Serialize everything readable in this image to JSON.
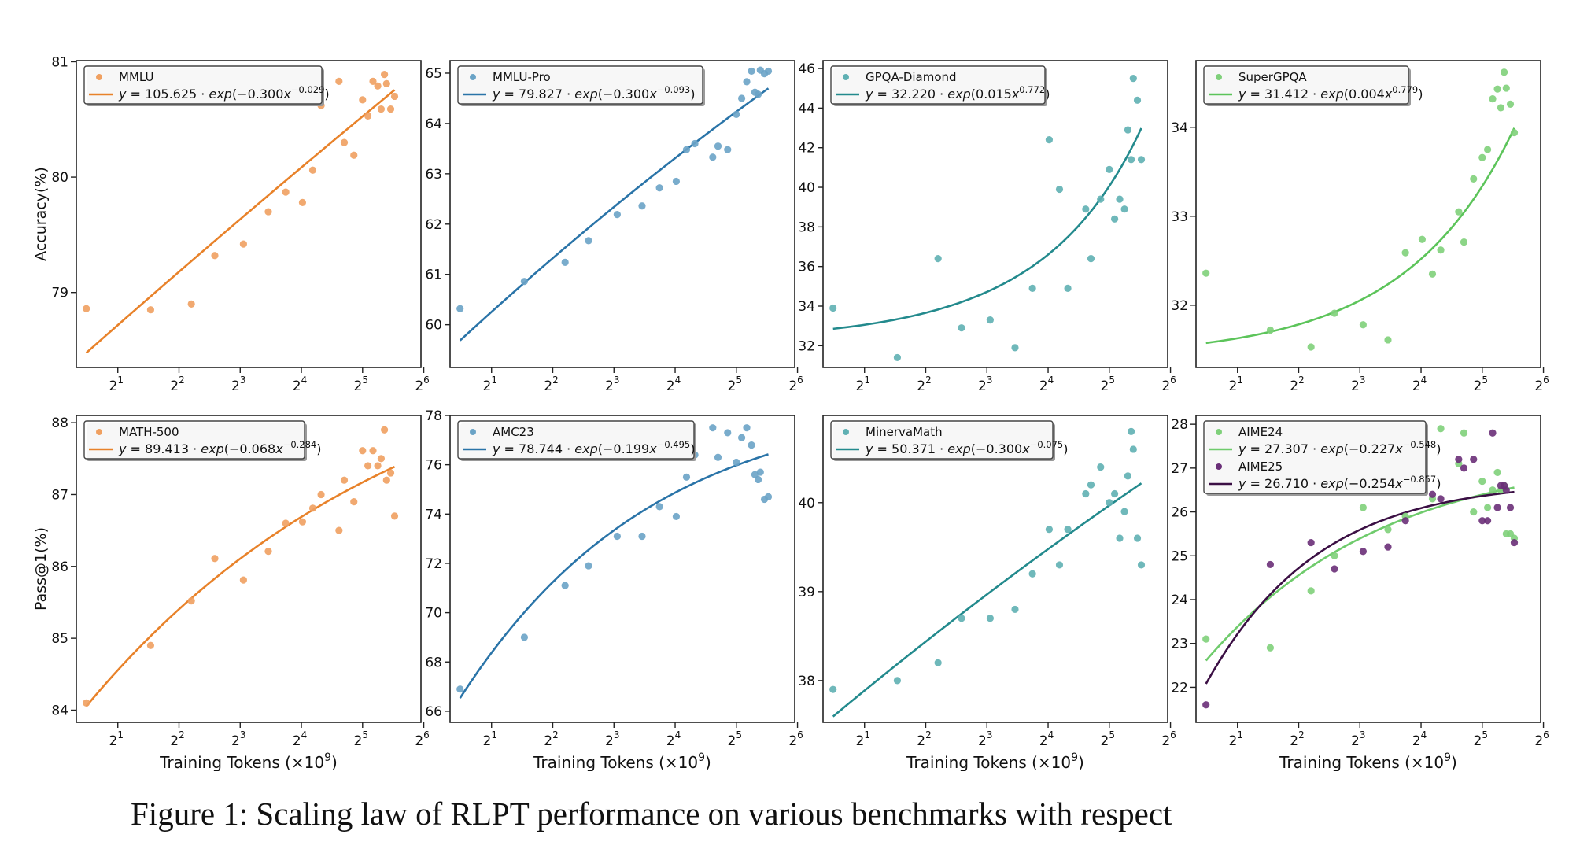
{
  "caption": "Figure 1: Scaling law of RLPT performance on various benchmarks with respect",
  "chart_data": [
    {
      "type": "scatter",
      "ylabel": "Accuracy(%)",
      "xlabel": "",
      "xscale": "log2",
      "xlim": [
        1.25,
        62
      ],
      "ylim": [
        78.35,
        81.01
      ],
      "xticks": [
        2,
        4,
        8,
        16,
        32,
        64
      ],
      "xtick_labels": [
        "2",
        "2",
        "2",
        "2",
        "2",
        "2"
      ],
      "xtick_exponents": [
        "1",
        "2",
        "3",
        "4",
        "5",
        "6"
      ],
      "yticks": [
        79,
        80,
        81
      ],
      "ytick_labels": [
        "79",
        "80",
        "81"
      ],
      "legend_position": "top-left",
      "series": [
        {
          "name": "MMLU",
          "color": "#f0a060",
          "x": [
            1.4,
            2.9,
            4.6,
            6.0,
            8.3,
            11.0,
            13.4,
            16.2,
            18.2,
            20.0,
            24.5,
            26.0,
            29.0,
            32.0,
            34.0,
            36.0,
            38.0,
            39.5,
            41.0,
            42.0,
            44.0,
            46.0
          ],
          "y": [
            78.86,
            78.85,
            78.9,
            79.32,
            79.42,
            79.7,
            79.87,
            79.78,
            80.06,
            80.62,
            80.83,
            80.3,
            80.19,
            80.67,
            80.53,
            80.83,
            80.79,
            80.59,
            80.89,
            80.81,
            80.59,
            80.7
          ]
        }
      ],
      "fit": {
        "label": "y = 105.625 · exp(−0.300x^−0.029)",
        "color": "#e8822a",
        "a": 105.625,
        "b": -0.3,
        "c": -0.029,
        "x_range": [
          1.4,
          46
        ]
      }
    },
    {
      "type": "scatter",
      "ylabel": "",
      "xlabel": "",
      "xscale": "log2",
      "xlim": [
        1.25,
        62
      ],
      "ylim": [
        59.15,
        65.25
      ],
      "xticks": [
        2,
        4,
        8,
        16,
        32,
        64
      ],
      "xtick_labels": [
        "2",
        "2",
        "2",
        "2",
        "2",
        "2"
      ],
      "xtick_exponents": [
        "1",
        "2",
        "3",
        "4",
        "5",
        "6"
      ],
      "yticks": [
        60,
        61,
        62,
        63,
        64,
        65
      ],
      "ytick_labels": [
        "60",
        "61",
        "62",
        "63",
        "64",
        "65"
      ],
      "legend_position": "top-left",
      "series": [
        {
          "name": "MMLU-Pro",
          "color": "#6aa3c6",
          "x": [
            1.4,
            2.9,
            4.6,
            6.0,
            8.3,
            11.0,
            13.4,
            16.2,
            18.2,
            20.0,
            24.5,
            26.0,
            29.0,
            32.0,
            34.0,
            36.0,
            38.0,
            39.5,
            41.0,
            42.0,
            44.0,
            46.0
          ],
          "y": [
            60.32,
            60.86,
            61.24,
            61.67,
            62.19,
            62.36,
            62.72,
            62.85,
            63.48,
            63.6,
            63.33,
            63.55,
            63.48,
            64.18,
            64.5,
            64.83,
            65.04,
            64.62,
            64.58,
            65.06,
            64.99,
            65.04
          ]
        }
      ],
      "fit": {
        "label": "y = 79.827 · exp(−0.300x^−0.093)",
        "color": "#2a74a8",
        "a": 79.827,
        "b": -0.3,
        "c": -0.093,
        "x_range": [
          1.4,
          46
        ]
      }
    },
    {
      "type": "scatter",
      "ylabel": "",
      "xlabel": "",
      "xscale": "log2",
      "xlim": [
        1.25,
        62
      ],
      "ylim": [
        30.9,
        46.4
      ],
      "xticks": [
        2,
        4,
        8,
        16,
        32,
        64
      ],
      "xtick_labels": [
        "2",
        "2",
        "2",
        "2",
        "2",
        "2"
      ],
      "xtick_exponents": [
        "1",
        "2",
        "3",
        "4",
        "5",
        "6"
      ],
      "yticks": [
        32,
        34,
        36,
        38,
        40,
        42,
        44,
        46
      ],
      "ytick_labels": [
        "32",
        "34",
        "36",
        "38",
        "40",
        "42",
        "44",
        "46"
      ],
      "legend_position": "top-left",
      "series": [
        {
          "name": "GPQA-Diamond",
          "color": "#5fb0b3",
          "x": [
            1.4,
            2.9,
            4.6,
            6.0,
            8.3,
            11.0,
            13.4,
            16.2,
            18.2,
            20.0,
            24.5,
            26.0,
            29.0,
            32.0,
            34.0,
            36.0,
            38.0,
            39.5,
            41.0,
            42.0,
            44.0,
            46.0
          ],
          "y": [
            33.9,
            31.4,
            36.4,
            32.9,
            33.3,
            31.9,
            34.9,
            42.4,
            39.9,
            34.9,
            38.9,
            36.4,
            39.4,
            40.9,
            38.4,
            39.4,
            38.9,
            42.9,
            41.4,
            45.5,
            44.4,
            41.4
          ]
        }
      ],
      "fit": {
        "label": "y = 32.220 · exp(0.015x^0.772)",
        "color": "#238a8d",
        "a": 32.22,
        "b": 0.015,
        "c": 0.772,
        "x_range": [
          1.4,
          46
        ]
      }
    },
    {
      "type": "scatter",
      "ylabel": "",
      "xlabel": "",
      "xscale": "log2",
      "xlim": [
        1.25,
        62
      ],
      "ylim": [
        31.3,
        34.75
      ],
      "xticks": [
        2,
        4,
        8,
        16,
        32,
        64
      ],
      "xtick_labels": [
        "2",
        "2",
        "2",
        "2",
        "2",
        "2"
      ],
      "xtick_exponents": [
        "1",
        "2",
        "3",
        "4",
        "5",
        "6"
      ],
      "yticks": [
        32,
        33,
        34
      ],
      "ytick_labels": [
        "32",
        "33",
        "34"
      ],
      "legend_position": "top-left",
      "series": [
        {
          "name": "SuperGPQA",
          "color": "#7fd07a",
          "x": [
            1.4,
            2.9,
            4.6,
            6.0,
            8.3,
            11.0,
            13.4,
            16.2,
            18.2,
            20.0,
            24.5,
            26.0,
            29.0,
            32.0,
            34.0,
            36.0,
            38.0,
            39.5,
            41.0,
            42.0,
            44.0,
            46.0
          ],
          "y": [
            32.36,
            31.72,
            31.53,
            31.91,
            31.78,
            31.61,
            32.59,
            32.74,
            32.35,
            32.62,
            33.05,
            32.71,
            33.42,
            33.66,
            33.75,
            34.32,
            34.43,
            34.22,
            34.62,
            34.44,
            34.26,
            33.94
          ]
        }
      ],
      "fit": {
        "label": "y = 31.412 · exp(0.004x^0.779)",
        "color": "#5cc45a",
        "a": 31.412,
        "b": 0.004,
        "c": 0.779,
        "x_range": [
          1.4,
          46
        ]
      }
    },
    {
      "type": "scatter",
      "ylabel": "Pass@1(%)",
      "xlabel": "Training Tokens (×10⁹)",
      "xscale": "log2",
      "xlim": [
        1.25,
        62
      ],
      "ylim": [
        83.83,
        88.1
      ],
      "xticks": [
        2,
        4,
        8,
        16,
        32,
        64
      ],
      "xtick_labels": [
        "2",
        "2",
        "2",
        "2",
        "2",
        "2"
      ],
      "xtick_exponents": [
        "1",
        "2",
        "3",
        "4",
        "5",
        "6"
      ],
      "yticks": [
        84,
        85,
        86,
        87,
        88
      ],
      "ytick_labels": [
        "84",
        "85",
        "86",
        "87",
        "88"
      ],
      "legend_position": "top-left",
      "series": [
        {
          "name": "MATH-500",
          "color": "#f0a060",
          "x": [
            1.4,
            2.9,
            4.6,
            6.0,
            8.3,
            11.0,
            13.4,
            16.2,
            18.2,
            20.0,
            24.5,
            26.0,
            29.0,
            32.0,
            34.0,
            36.0,
            38.0,
            39.5,
            41.0,
            42.0,
            44.0,
            46.0
          ],
          "y": [
            84.1,
            84.9,
            85.52,
            86.11,
            85.81,
            86.21,
            86.6,
            86.62,
            86.81,
            87.0,
            86.5,
            87.2,
            86.9,
            87.61,
            87.4,
            87.61,
            87.4,
            87.5,
            87.9,
            87.2,
            87.3,
            86.7
          ]
        }
      ],
      "fit": {
        "label": "y = 89.413 · exp(−0.068x^−0.284)",
        "color": "#e8822a",
        "a": 89.413,
        "b": -0.068,
        "c": -0.284,
        "x_range": [
          1.4,
          46
        ]
      }
    },
    {
      "type": "scatter",
      "ylabel": "",
      "xlabel": "Training Tokens (×10⁹)",
      "xscale": "log2",
      "xlim": [
        1.25,
        62
      ],
      "ylim": [
        65.55,
        78.0
      ],
      "xticks": [
        2,
        4,
        8,
        16,
        32,
        64
      ],
      "xtick_labels": [
        "2",
        "2",
        "2",
        "2",
        "2",
        "2"
      ],
      "xtick_exponents": [
        "1",
        "2",
        "3",
        "4",
        "5",
        "6"
      ],
      "yticks": [
        66,
        68,
        70,
        72,
        74,
        76,
        78
      ],
      "ytick_labels": [
        "66",
        "68",
        "70",
        "72",
        "74",
        "76",
        "78"
      ],
      "legend_position": "top-left",
      "series": [
        {
          "name": "AMC23",
          "color": "#6aa3c6",
          "x": [
            1.4,
            2.9,
            4.6,
            6.0,
            8.3,
            11.0,
            13.4,
            16.2,
            18.2,
            20.0,
            24.5,
            26.0,
            29.0,
            32.0,
            34.0,
            36.0,
            38.0,
            39.5,
            41.0,
            42.0,
            44.0,
            46.0
          ],
          "y": [
            66.9,
            69.0,
            71.1,
            71.9,
            73.1,
            73.1,
            74.3,
            73.9,
            75.5,
            76.4,
            77.5,
            76.3,
            77.3,
            76.1,
            77.1,
            77.5,
            76.8,
            75.6,
            75.4,
            75.7,
            74.6,
            74.7
          ]
        }
      ],
      "fit": {
        "label": "y = 78.744 · exp(−0.199x^−0.495)",
        "color": "#2a74a8",
        "a": 78.744,
        "b": -0.199,
        "c": -0.495,
        "x_range": [
          1.4,
          46
        ]
      }
    },
    {
      "type": "scatter",
      "ylabel": "",
      "xlabel": "Training Tokens (×10⁹)",
      "xscale": "log2",
      "xlim": [
        1.25,
        62
      ],
      "ylim": [
        37.53,
        40.98
      ],
      "xticks": [
        2,
        4,
        8,
        16,
        32,
        64
      ],
      "xtick_labels": [
        "2",
        "2",
        "2",
        "2",
        "2",
        "2"
      ],
      "xtick_exponents": [
        "1",
        "2",
        "3",
        "4",
        "5",
        "6"
      ],
      "yticks": [
        38,
        39,
        40
      ],
      "ytick_labels": [
        "38",
        "39",
        "40"
      ],
      "legend_position": "top-left",
      "series": [
        {
          "name": "MinervaMath",
          "color": "#5fb0b3",
          "x": [
            1.4,
            2.9,
            4.6,
            6.0,
            8.3,
            11.0,
            13.4,
            16.2,
            18.2,
            20.0,
            24.5,
            26.0,
            29.0,
            32.0,
            34.0,
            36.0,
            38.0,
            39.5,
            41.0,
            42.0,
            44.0,
            46.0
          ],
          "y": [
            37.9,
            38.0,
            38.2,
            38.7,
            38.7,
            38.8,
            39.2,
            39.7,
            39.3,
            39.7,
            40.1,
            40.2,
            40.4,
            40.0,
            40.1,
            39.6,
            39.9,
            40.3,
            40.8,
            40.6,
            39.6,
            39.3
          ]
        }
      ],
      "fit": {
        "label": "y = 50.371 · exp(−0.300x^−0.075)",
        "color": "#238a8d",
        "a": 50.371,
        "b": -0.3,
        "c": -0.075,
        "x_range": [
          1.4,
          46
        ]
      }
    },
    {
      "type": "scatter",
      "ylabel": "",
      "xlabel": "Training Tokens (×10⁹)",
      "xscale": "log2",
      "xlim": [
        1.25,
        62
      ],
      "ylim": [
        21.2,
        28.2
      ],
      "xticks": [
        2,
        4,
        8,
        16,
        32,
        64
      ],
      "xtick_labels": [
        "2",
        "2",
        "2",
        "2",
        "2",
        "2"
      ],
      "xtick_exponents": [
        "1",
        "2",
        "3",
        "4",
        "5",
        "6"
      ],
      "yticks": [
        22,
        23,
        24,
        25,
        26,
        27,
        28
      ],
      "ytick_labels": [
        "22",
        "23",
        "24",
        "25",
        "26",
        "27",
        "28"
      ],
      "legend_position": "top-left",
      "series": [
        {
          "name": "AIME24",
          "color": "#7fd07a",
          "x": [
            1.4,
            2.9,
            4.6,
            6.0,
            8.3,
            11.0,
            13.4,
            16.2,
            18.2,
            20.0,
            24.5,
            26.0,
            29.0,
            32.0,
            34.0,
            36.0,
            38.0,
            39.5,
            41.0,
            42.0,
            44.0,
            46.0
          ],
          "y": [
            23.1,
            22.9,
            24.2,
            25.0,
            26.1,
            25.6,
            25.9,
            26.6,
            26.3,
            27.9,
            27.1,
            27.8,
            26.0,
            26.7,
            26.1,
            26.5,
            26.9,
            26.5,
            26.6,
            25.5,
            25.5,
            25.4
          ]
        },
        {
          "name": "AIME25",
          "color": "#6a2f78",
          "x": [
            1.4,
            2.9,
            4.6,
            6.0,
            8.3,
            11.0,
            13.4,
            16.2,
            18.2,
            20.0,
            24.5,
            26.0,
            29.0,
            32.0,
            34.0,
            36.0,
            38.0,
            39.5,
            41.0,
            42.0,
            44.0,
            46.0
          ],
          "y": [
            21.6,
            24.8,
            25.3,
            24.7,
            25.1,
            25.2,
            25.8,
            26.7,
            26.4,
            26.3,
            27.2,
            27.0,
            27.2,
            25.8,
            25.8,
            27.8,
            26.1,
            26.6,
            26.6,
            26.5,
            26.1,
            25.3
          ]
        }
      ],
      "fit": [
        {
          "label": "y = 27.307 · exp(−0.227x^−0.548)",
          "color": "#6fcb6c",
          "a": 27.307,
          "b": -0.227,
          "c": -0.548,
          "x_range": [
            1.4,
            46
          ]
        },
        {
          "label": "y = 26.710 · exp(−0.254x^−0.857)",
          "color": "#3b0f44",
          "a": 26.71,
          "b": -0.254,
          "c": -0.857,
          "x_range": [
            1.4,
            46
          ]
        }
      ]
    }
  ]
}
